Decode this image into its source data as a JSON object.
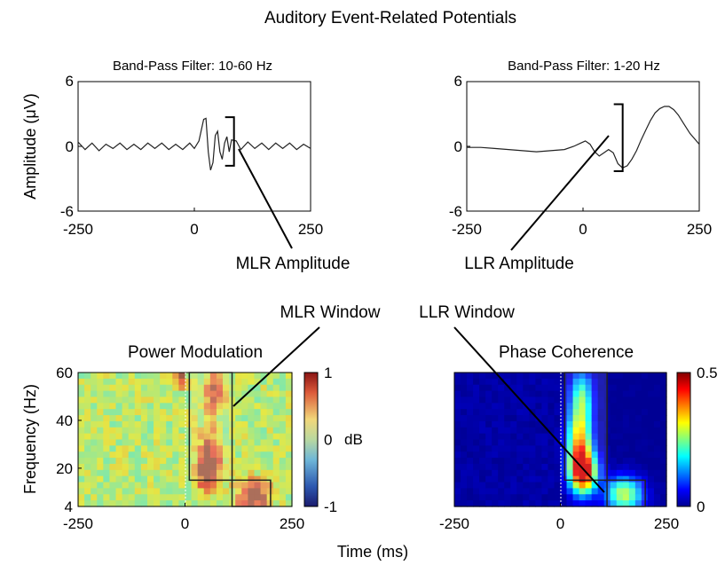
{
  "figure": {
    "title": "Auditory Event-Related Potentials",
    "ylabel_top": "Amplitude (μV)",
    "ylabel_bottom": "Frequency (Hz)",
    "xlabel_bottom": "Time (ms)"
  },
  "annotations": {
    "mlr_amplitude": "MLR Amplitude",
    "llr_amplitude": "LLR Amplitude",
    "mlr_window": "MLR Window",
    "llr_window": "LLR Window"
  },
  "chart_data": [
    {
      "type": "line",
      "title": "Band-Pass Filter: 10-60 Hz",
      "xlim": [
        -250,
        250
      ],
      "ylim": [
        -6,
        6
      ],
      "xticks": [
        "-250",
        "0",
        "250"
      ],
      "yticks": [
        "6",
        "0",
        "-6"
      ],
      "series": [
        {
          "x": [
            -250,
            -235,
            -220,
            -205,
            -190,
            -175,
            -160,
            -145,
            -130,
            -115,
            -100,
            -85,
            -70,
            -55,
            -40,
            -25,
            -10,
            0,
            10,
            20,
            25,
            30,
            35,
            40,
            45,
            50,
            55,
            60,
            65,
            70,
            75,
            80,
            90,
            100,
            115,
            130,
            145,
            160,
            175,
            190,
            205,
            220,
            235,
            250
          ],
          "y": [
            0.4,
            -0.3,
            0.3,
            -0.4,
            0.2,
            -0.2,
            0.3,
            -0.3,
            0.2,
            -0.3,
            0.3,
            -0.2,
            0.3,
            -0.3,
            0.2,
            -0.3,
            0.3,
            -0.2,
            0.5,
            2.5,
            2.6,
            -0.5,
            -2.2,
            -1.5,
            1.0,
            1.4,
            -0.5,
            -1.2,
            0.3,
            0.9,
            -0.5,
            0.6,
            0.5,
            -0.3,
            0.4,
            -0.2,
            0.3,
            -0.3,
            0.3,
            -0.2,
            0.3,
            -0.3,
            0.2,
            -0.2
          ]
        }
      ],
      "bracket": {
        "x": 70,
        "y_low": -1.8,
        "y_high": 2.7
      }
    },
    {
      "type": "line",
      "title": "Band-Pass Filter: 1-20 Hz",
      "xlim": [
        -250,
        250
      ],
      "ylim": [
        -6,
        6
      ],
      "xticks": [
        "-250",
        "0",
        "250"
      ],
      "yticks": [
        "6",
        "0",
        "-6"
      ],
      "series": [
        {
          "x": [
            -250,
            -220,
            -190,
            -160,
            -130,
            -100,
            -70,
            -40,
            -20,
            -5,
            5,
            15,
            25,
            35,
            45,
            55,
            65,
            75,
            85,
            95,
            105,
            115,
            125,
            135,
            145,
            155,
            165,
            175,
            185,
            195,
            205,
            215,
            230,
            250
          ],
          "y": [
            -0.1,
            -0.1,
            -0.2,
            -0.3,
            -0.4,
            -0.5,
            -0.4,
            -0.3,
            0.0,
            0.3,
            0.5,
            0.2,
            -0.5,
            -0.9,
            -0.6,
            -0.3,
            -0.6,
            -1.6,
            -2.0,
            -1.8,
            -1.2,
            -0.4,
            0.6,
            1.5,
            2.4,
            3.1,
            3.5,
            3.7,
            3.7,
            3.4,
            2.9,
            2.2,
            1.2,
            0.2
          ]
        }
      ],
      "bracket": {
        "x": 70,
        "y_low": -2.3,
        "y_high": 3.9
      }
    },
    {
      "type": "heatmap",
      "title": "Power Modulation",
      "colorbar": {
        "min": -1,
        "max": 1,
        "ticks": [
          "1",
          "0",
          "-1"
        ],
        "unit": "dB"
      },
      "xlim": [
        -250,
        250
      ],
      "ylim": [
        4,
        60
      ],
      "xticks": [
        "-250",
        "0",
        "250"
      ],
      "yticks": [
        "60",
        "40",
        "20",
        "4"
      ],
      "background": 0.1,
      "regions": [
        {
          "t": [
            10,
            110
          ],
          "f": [
            15,
            60
          ],
          "label_note": "MLR window box"
        },
        {
          "t": [
            110,
            200
          ],
          "f": [
            4,
            15
          ],
          "label_note": "LLR window box"
        }
      ],
      "hotspots": [
        {
          "t": 70,
          "f": 52,
          "amp": 0.75,
          "st": 18,
          "sf": 7
        },
        {
          "t": 60,
          "f": 25,
          "amp": 0.85,
          "st": 20,
          "sf": 8
        },
        {
          "t": 45,
          "f": 18,
          "amp": 0.6,
          "st": 15,
          "sf": 5
        },
        {
          "t": 160,
          "f": 8,
          "amp": 0.95,
          "st": 28,
          "sf": 5
        },
        {
          "t": -10,
          "f": 58,
          "amp": 0.9,
          "st": 8,
          "sf": 3
        },
        {
          "t": 85,
          "f": 40,
          "amp": -0.25,
          "st": 10,
          "sf": 6
        }
      ]
    },
    {
      "type": "heatmap",
      "title": "Phase Coherence",
      "colorbar": {
        "min": 0,
        "max": 0.5,
        "ticks": [
          "0.5",
          "0"
        ],
        "unit": ""
      },
      "xlim": [
        -250,
        250
      ],
      "ylim": [
        4,
        60
      ],
      "xticks": [
        "-250",
        "0",
        "250"
      ],
      "yticks": [],
      "background": 0.0,
      "regions": [
        {
          "t": [
            10,
            110
          ],
          "f": [
            15,
            60
          ],
          "label_note": "MLR window box"
        },
        {
          "t": [
            110,
            200
          ],
          "f": [
            4,
            15
          ],
          "label_note": "LLR window box"
        }
      ],
      "hotspots": [
        {
          "t": 50,
          "f": 50,
          "amp": 0.22,
          "st": 18,
          "sf": 8
        },
        {
          "t": 45,
          "f": 30,
          "amp": 0.38,
          "st": 20,
          "sf": 10
        },
        {
          "t": 55,
          "f": 18,
          "amp": 0.45,
          "st": 22,
          "sf": 6
        },
        {
          "t": 150,
          "f": 9,
          "amp": 0.3,
          "st": 30,
          "sf": 5
        }
      ]
    }
  ]
}
